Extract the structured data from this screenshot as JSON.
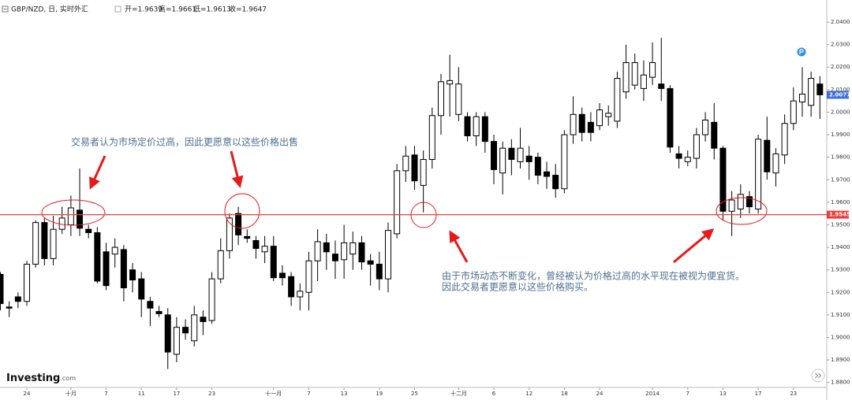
{
  "chart_data": {
    "type": "candlestick",
    "title": "GBP/NZD, 日, 实时外汇",
    "ohlc_info": [
      "开=1.9639",
      "高=1.9661",
      "低=1.9613",
      "收=1.9647"
    ],
    "logo": [
      "Investing",
      ".com"
    ],
    "annotations": [
      "交易者认为市场定价过高，因此更愿意以这些价格出售",
      "由于市场动态不断变化，曾经被认为价格过高的水平现在被视为便宜货。",
      "因此交易者更愿意以这些价格购买。"
    ],
    "categories": [
      null,
      null,
      null,
      "24",
      null,
      null,
      null,
      null,
      "十月",
      null,
      null,
      null,
      "7",
      null,
      null,
      null,
      "11",
      null,
      null,
      null,
      "17",
      null,
      null,
      null,
      "23",
      null,
      null,
      null,
      null,
      null,
      null,
      "十一月",
      null,
      null,
      null,
      "7",
      null,
      null,
      null,
      "13",
      null,
      null,
      null,
      "19",
      null,
      null,
      null,
      "25",
      null,
      null,
      null,
      null,
      "十二月",
      null,
      null,
      null,
      "6",
      null,
      null,
      null,
      "12",
      null,
      null,
      null,
      "18",
      null,
      null,
      null,
      "24",
      null,
      null,
      null,
      null,
      null,
      "2014",
      null,
      null,
      null,
      "7",
      null,
      null,
      null,
      "13",
      null,
      null,
      null,
      "17",
      null,
      null,
      null,
      "23",
      null,
      null,
      null
    ],
    "open": [
      1.928,
      1.9135,
      1.918,
      1.916,
      1.9325,
      1.951,
      1.935,
      1.948,
      1.95,
      1.9565,
      1.948,
      1.9465,
      1.938,
      1.937,
      1.939,
      1.93,
      1.926,
      1.916,
      1.9115,
      1.91,
      1.8925,
      1.9045,
      1.8985,
      1.909,
      1.9075,
      1.926,
      1.9385,
      1.955,
      1.9448,
      1.943,
      1.938,
      1.9405,
      1.9285,
      1.927,
      1.918,
      1.92,
      1.934,
      1.942,
      1.937,
      1.9345,
      1.937,
      1.942,
      1.934,
      1.9325,
      1.926,
      1.946,
      1.974,
      1.981,
      1.9675,
      1.979,
      1.9985,
      2.0125,
      1.999,
      1.998,
      1.9895,
      1.998,
      1.987,
      1.973,
      1.984,
      1.978,
      1.9805,
      1.98,
      1.9735,
      1.972,
      1.966,
      1.99,
      1.999,
      1.9955,
      1.994,
      1.998,
      1.996,
      2.009,
      2.012,
      2.0105,
      2.0155,
      2.0125,
      2.0105,
      1.9815,
      1.978,
      1.9795,
      1.99,
      1.9955,
      1.984,
      1.956,
      1.957,
      1.9625,
      1.957,
      1.9875,
      1.973,
      1.981,
      1.995,
      2.0045,
      2.003,
      2.0125
    ],
    "high": [
      1.929,
      1.916,
      1.92,
      1.934,
      1.952,
      1.953,
      1.954,
      1.958,
      1.963,
      1.975,
      1.95,
      1.949,
      1.942,
      1.944,
      1.941,
      1.933,
      1.929,
      1.918,
      1.914,
      1.913,
      1.909,
      1.908,
      1.914,
      1.912,
      1.929,
      1.944,
      1.955,
      1.958,
      1.948,
      1.945,
      1.945,
      1.945,
      1.932,
      1.929,
      1.924,
      1.938,
      1.948,
      1.946,
      1.943,
      1.95,
      1.947,
      1.945,
      1.937,
      1.938,
      1.951,
      1.977,
      1.985,
      1.985,
      1.983,
      2.002,
      2.017,
      2.0255,
      2.02,
      2.0,
      2.0,
      2.0,
      1.99,
      1.987,
      1.988,
      1.993,
      1.985,
      1.982,
      1.978,
      1.977,
      1.992,
      2.007,
      2.002,
      2.0,
      2.004,
      2.003,
      2.018,
      2.03,
      2.026,
      2.023,
      2.031,
      2.033,
      2.012,
      1.985,
      1.983,
      1.993,
      2.0,
      2.004,
      1.985,
      1.965,
      1.968,
      1.965,
      1.99,
      1.998,
      1.984,
      1.999,
      2.011,
      2.02,
      2.018,
      2.016
    ],
    "low": [
      1.912,
      1.909,
      1.913,
      1.914,
      1.931,
      1.932,
      1.932,
      1.946,
      1.945,
      1.945,
      1.944,
      1.924,
      1.921,
      1.931,
      1.916,
      1.92,
      1.909,
      1.905,
      1.909,
      1.886,
      1.889,
      1.899,
      1.896,
      1.901,
      1.906,
      1.924,
      1.935,
      1.941,
      1.942,
      1.935,
      1.933,
      1.925,
      1.923,
      1.914,
      1.912,
      1.912,
      1.925,
      1.93,
      1.926,
      1.926,
      1.93,
      1.93,
      1.923,
      1.921,
      1.92,
      1.944,
      1.969,
      1.9655,
      1.9555,
      1.975,
      1.99,
      1.998,
      1.996,
      1.987,
      1.985,
      1.982,
      1.968,
      1.9635,
      1.972,
      1.975,
      1.97,
      1.968,
      1.966,
      1.962,
      1.964,
      1.986,
      1.987,
      1.987,
      1.992,
      1.994,
      1.993,
      2.006,
      2.01,
      2.005,
      2.012,
      2.005,
      1.982,
      1.975,
      1.976,
      1.975,
      1.987,
      1.979,
      1.952,
      1.945,
      1.953,
      1.955,
      1.955,
      1.97,
      1.967,
      1.977,
      1.992,
      1.998,
      1.998,
      1.997
    ],
    "close": [
      1.915,
      1.913,
      1.916,
      1.9325,
      1.951,
      1.935,
      1.948,
      1.953,
      1.9575,
      1.9485,
      1.9465,
      1.925,
      1.923,
      1.94,
      1.922,
      1.9255,
      1.917,
      1.913,
      1.9105,
      1.8935,
      1.9045,
      1.902,
      1.91,
      1.907,
      1.926,
      1.9385,
      1.953,
      1.9455,
      1.944,
      1.9395,
      1.9405,
      1.9265,
      1.9265,
      1.918,
      1.9205,
      1.934,
      1.9425,
      1.938,
      1.934,
      1.942,
      1.942,
      1.9335,
      1.9325,
      1.926,
      1.9475,
      1.974,
      1.9805,
      1.9695,
      1.979,
      1.9985,
      2.0135,
      2.014,
      2.0125,
      1.9895,
      1.998,
      1.987,
      1.9745,
      1.984,
      1.979,
      1.984,
      1.978,
      1.972,
      1.9715,
      1.966,
      1.99,
      1.999,
      1.991,
      1.991,
      2.001,
      1.9995,
      2.015,
      2.022,
      2.022,
      2.0165,
      2.022,
      2.0105,
      1.9845,
      1.9795,
      1.98,
      1.99,
      1.9965,
      1.984,
      1.956,
      1.961,
      1.9635,
      1.958,
      1.988,
      1.9735,
      1.9815,
      1.995,
      2.005,
      2.008,
      2.015,
      2.0077
    ],
    "up_color": "#ffffff",
    "down_color": "#000000",
    "ylim": [
      1.8778,
      2.0498
    ],
    "yticks": [
      {
        "value": 1.88,
        "label": "1.8800"
      },
      {
        "value": 1.89,
        "label": "1.8900"
      },
      {
        "value": 1.9,
        "label": "1.9000"
      },
      {
        "value": 1.91,
        "label": "1.9100"
      },
      {
        "value": 1.92,
        "label": "1.9200"
      },
      {
        "value": 1.93,
        "label": "1.9300"
      },
      {
        "value": 1.94,
        "label": "1.9400"
      },
      {
        "value": 1.95,
        "label": "1.9500"
      },
      {
        "value": 1.96,
        "label": "1.9600"
      },
      {
        "value": 1.97,
        "label": "1.9700"
      },
      {
        "value": 1.98,
        "label": "1.9800"
      },
      {
        "value": 1.99,
        "label": "1.9900"
      },
      {
        "value": 2.0,
        "label": "2.0000"
      },
      {
        "value": 2.01,
        "label": "2.0100"
      },
      {
        "value": 2.02,
        "label": "2.0200"
      },
      {
        "value": 2.03,
        "label": "2.0300"
      },
      {
        "value": 2.04,
        "label": "2.0400"
      }
    ],
    "support_line": {
      "value": 1.9545,
      "label": "1.9545",
      "color": "#e8413c"
    },
    "last_price": {
      "value": 2.0077,
      "label": "2.0077",
      "color": "#3d6fd6"
    }
  }
}
